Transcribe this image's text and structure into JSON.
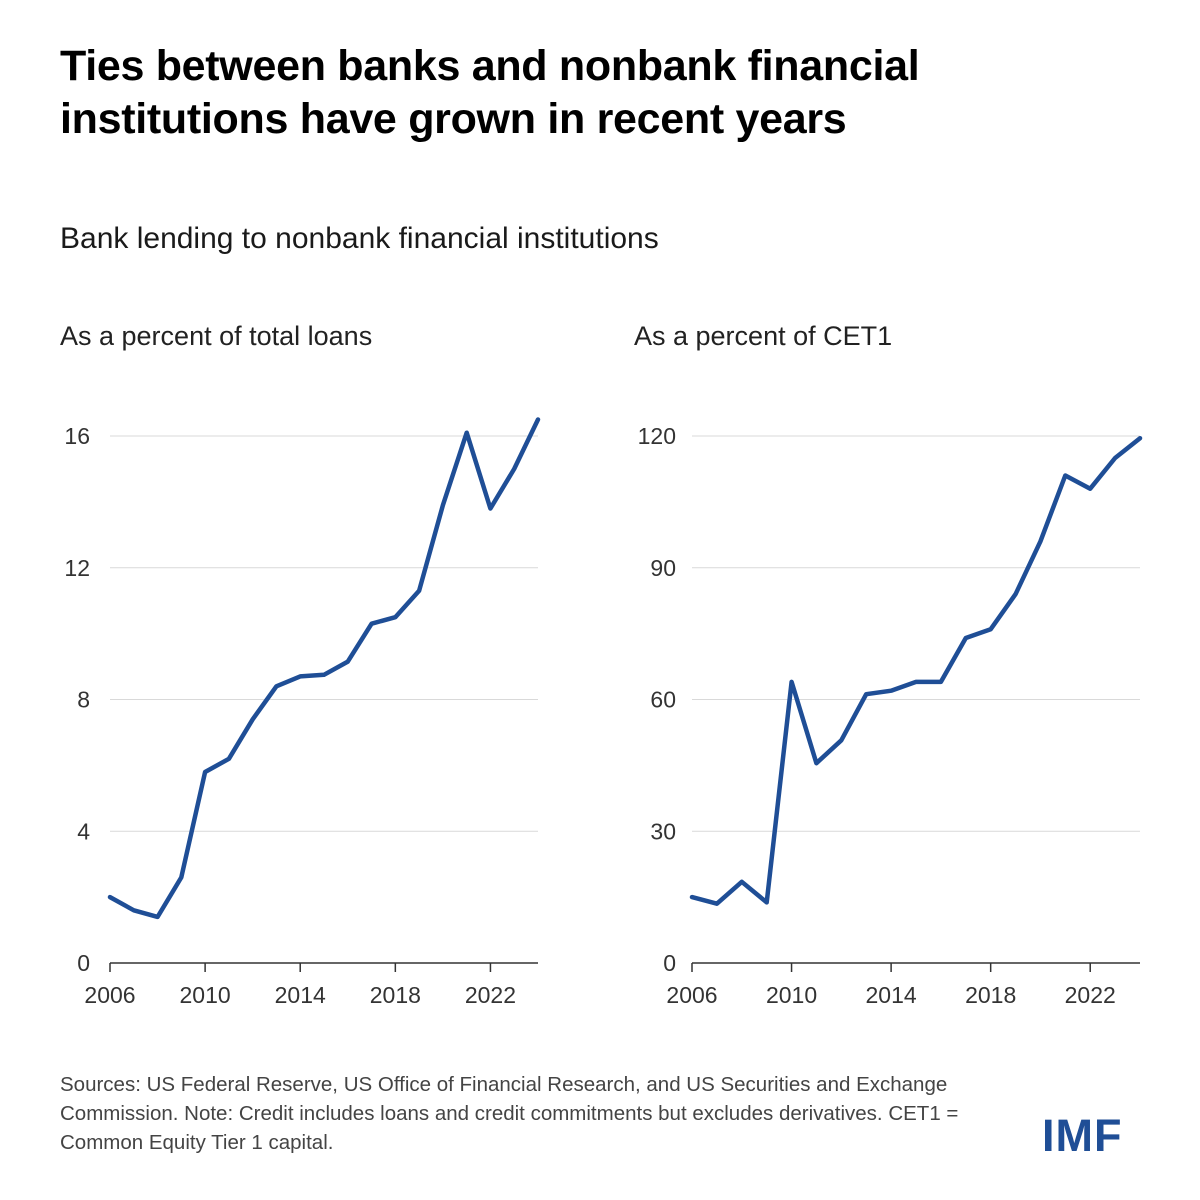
{
  "title": "Ties between banks and nonbank financial institutions have grown in recent years",
  "subtitle": "Bank lending to nonbank financial institutions",
  "source_note": "Sources: US Federal Reserve, US Office of Financial Research, and US Securities and Exchange Commission. Note: Credit includes loans and credit commitments but excludes derivatives. CET1 = Common Equity Tier 1 capital.",
  "logo_text": "IMF",
  "colors": {
    "line": "#1f4e96",
    "logo": "#1f4e96"
  },
  "chart_data": [
    {
      "type": "line",
      "title": "As a percent of total loans",
      "xlabel": "",
      "ylabel": "",
      "xlim": [
        2006,
        2024
      ],
      "ylim": [
        0,
        16
      ],
      "x_ticks": [
        2006,
        2010,
        2014,
        2018,
        2022
      ],
      "y_ticks": [
        0,
        4,
        8,
        12,
        16
      ],
      "grid": "horizontal",
      "x": [
        2006,
        2007,
        2008,
        2009,
        2010,
        2011,
        2012,
        2013,
        2014,
        2015,
        2016,
        2017,
        2018,
        2019,
        2020,
        2021,
        2022,
        2023,
        2024
      ],
      "series": [
        {
          "values": [
            2.0,
            1.6,
            1.4,
            2.6,
            5.8,
            6.2,
            7.4,
            8.4,
            8.7,
            8.75,
            9.15,
            10.3,
            10.5,
            11.3,
            13.9,
            16.1,
            13.8,
            15.0,
            16.5
          ]
        }
      ]
    },
    {
      "type": "line",
      "title": "As a percent of CET1",
      "xlabel": "",
      "ylabel": "",
      "xlim": [
        2006,
        2024
      ],
      "ylim": [
        0,
        120
      ],
      "x_ticks": [
        2006,
        2010,
        2014,
        2018,
        2022
      ],
      "y_ticks": [
        0,
        30,
        60,
        90,
        120
      ],
      "grid": "horizontal",
      "x": [
        2006,
        2007,
        2008,
        2009,
        2010,
        2011,
        2012,
        2013,
        2014,
        2015,
        2016,
        2017,
        2018,
        2019,
        2020,
        2021,
        2022,
        2023,
        2024
      ],
      "series": [
        {
          "values": [
            15,
            13.5,
            18.5,
            13.8,
            64,
            45.5,
            50.7,
            61.2,
            62,
            64,
            64,
            74,
            76,
            84,
            96,
            111,
            108,
            115,
            119.5
          ]
        }
      ]
    }
  ]
}
